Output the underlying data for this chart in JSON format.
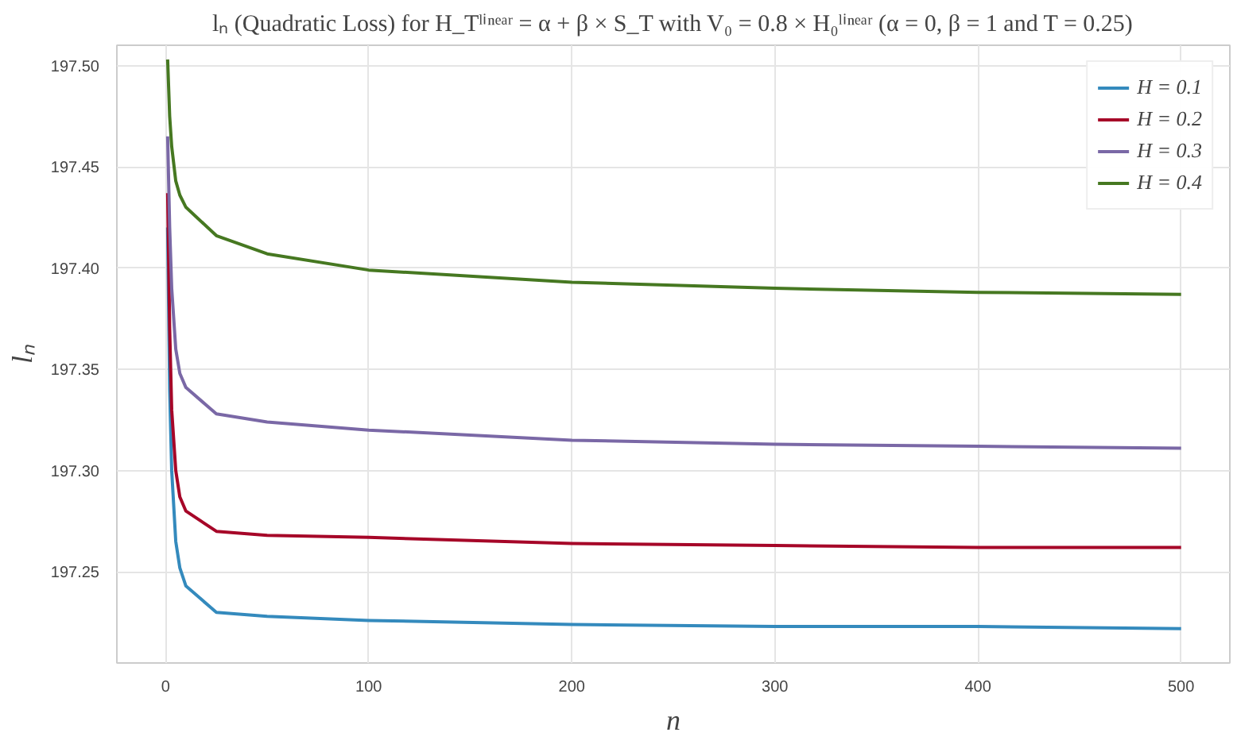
{
  "chart_data": {
    "type": "line",
    "title": "lₙ (Quadratic Loss) for H_Tˡⁱⁿᵉᵃʳ = α + β × S_T with V₀ = 0.8 × H₀ˡⁱⁿᵉᵃʳ (α = 0, β = 1 and T = 0.25)",
    "xlabel": "n",
    "ylabel": "lₙ",
    "x": [
      1,
      2,
      3,
      5,
      7,
      10,
      25,
      50,
      100,
      200,
      300,
      400,
      500
    ],
    "series": [
      {
        "name": "H = 0.1",
        "color": "#348abd",
        "values": [
          197.42,
          197.34,
          197.3,
          197.265,
          197.252,
          197.243,
          197.23,
          197.228,
          197.226,
          197.224,
          197.223,
          197.223,
          197.222
        ]
      },
      {
        "name": "H = 0.2",
        "color": "#a60628",
        "values": [
          197.437,
          197.37,
          197.33,
          197.3,
          197.287,
          197.28,
          197.27,
          197.268,
          197.267,
          197.264,
          197.263,
          197.262,
          197.262
        ]
      },
      {
        "name": "H = 0.3",
        "color": "#7a68a6",
        "values": [
          197.465,
          197.42,
          197.39,
          197.36,
          197.348,
          197.341,
          197.328,
          197.324,
          197.32,
          197.315,
          197.313,
          197.312,
          197.311
        ]
      },
      {
        "name": "H = 0.4",
        "color": "#467821",
        "values": [
          197.503,
          197.475,
          197.46,
          197.443,
          197.436,
          197.43,
          197.416,
          197.407,
          197.399,
          197.393,
          197.39,
          197.388,
          197.387
        ]
      }
    ],
    "xlim": [
      -24,
      524
    ],
    "ylim": [
      197.205,
      197.51
    ],
    "xticks": [
      0,
      100,
      200,
      300,
      400,
      500
    ],
    "yticks": [
      {
        "value": 197.25,
        "label": "197.25"
      },
      {
        "value": 197.3,
        "label": "197.30"
      },
      {
        "value": 197.35,
        "label": "197.35"
      },
      {
        "value": 197.4,
        "label": "197.40"
      },
      {
        "value": 197.45,
        "label": "197.45"
      },
      {
        "value": 197.5,
        "label": "197.50"
      }
    ],
    "grid": true,
    "legend": "top right",
    "marker": "none",
    "line_style": "solid"
  }
}
